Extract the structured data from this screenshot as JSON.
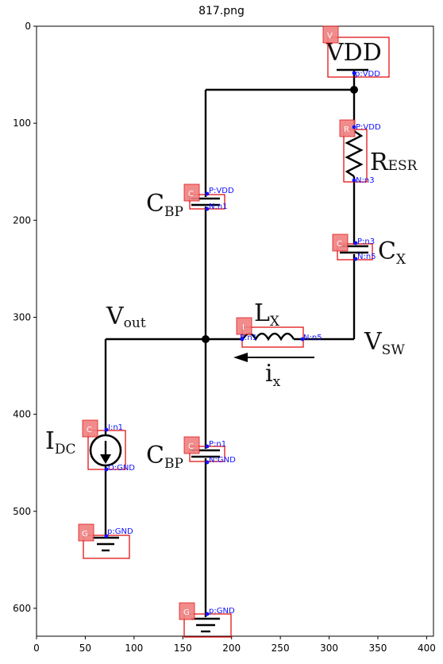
{
  "title": "817.png",
  "axes": {
    "x_ticks": [
      "0",
      "50",
      "100",
      "150",
      "200",
      "250",
      "300",
      "350",
      "400"
    ],
    "y_ticks": [
      "0",
      "100",
      "200",
      "300",
      "400",
      "500",
      "600"
    ]
  },
  "circuit_labels": {
    "vdd": "VDD",
    "r_esr": "R",
    "r_esr_sub": "ESR",
    "cbp_top": "C",
    "cbp_top_sub": "BP",
    "cx": "C",
    "cx_sub": "X",
    "vout": "V",
    "vout_sub": "out",
    "lx": "L",
    "lx_sub": "X",
    "vsw": "V",
    "vsw_sub": "SW",
    "ix": "i",
    "ix_sub": "x",
    "idc": "I",
    "idc_sub": "DC",
    "cbp_bot": "C",
    "cbp_bot_sub": "BP"
  },
  "annotations": [
    {
      "tag": "V",
      "pins": [
        "p:VDD"
      ]
    },
    {
      "tag": "R",
      "pins": [
        "P:VDD",
        "N:n3"
      ]
    },
    {
      "tag": "C",
      "pins": [
        "P:VDD",
        "N:n1"
      ]
    },
    {
      "tag": "C",
      "pins": [
        "P:n3",
        "N:n5"
      ]
    },
    {
      "tag": "I",
      "pins": [
        "P:n1",
        "N:n5"
      ]
    },
    {
      "tag": "C",
      "pins": [
        "I:n1",
        "O:GND"
      ]
    },
    {
      "tag": "C",
      "pins": [
        "P:n1",
        "N:GND"
      ]
    },
    {
      "tag": "G",
      "pins": [
        "p:GND"
      ]
    },
    {
      "tag": "G",
      "pins": [
        "p:GND"
      ]
    }
  ],
  "colors": {
    "box": "#e00000",
    "tag_fill": "#f08080",
    "pin": "#1010ff",
    "wire": "#000000"
  }
}
